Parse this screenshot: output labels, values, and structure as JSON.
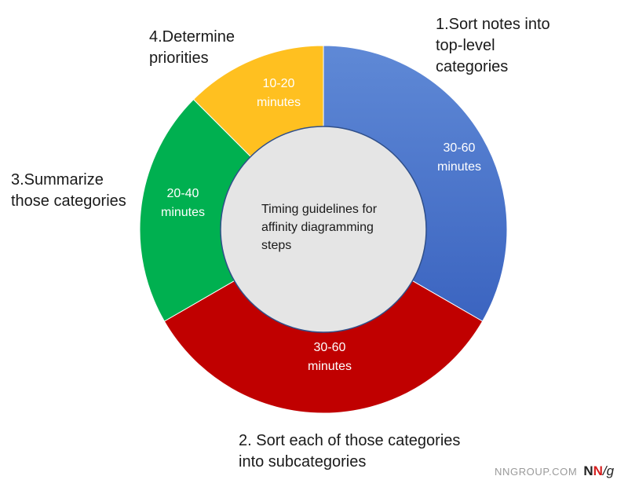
{
  "center_label": [
    "Timing guidelines for",
    "affinity diagramming",
    "steps"
  ],
  "steps": [
    {
      "label_lines": [
        "1.Sort notes into",
        "top-level",
        "categories"
      ],
      "time_lines": [
        "30-60",
        "minutes"
      ],
      "color": "#4a74cf"
    },
    {
      "label_lines": [
        "2. Sort each of those categories",
        "into subcategories"
      ],
      "time_lines": [
        "30-60",
        "minutes"
      ],
      "color": "#c00000"
    },
    {
      "label_lines": [
        "3.Summarize",
        "those categories"
      ],
      "time_lines": [
        "20-40",
        "minutes"
      ],
      "color": "#00b050"
    },
    {
      "label_lines": [
        "4.Determine",
        "priorities"
      ],
      "time_lines": [
        "10-20",
        "minutes"
      ],
      "color": "#ffc020"
    }
  ],
  "center_fill": "#e5e5e5",
  "brand": {
    "site": "NNGROUP.COM",
    "logo_n1": "N",
    "logo_n2": "N",
    "logo_g": "/g"
  }
}
